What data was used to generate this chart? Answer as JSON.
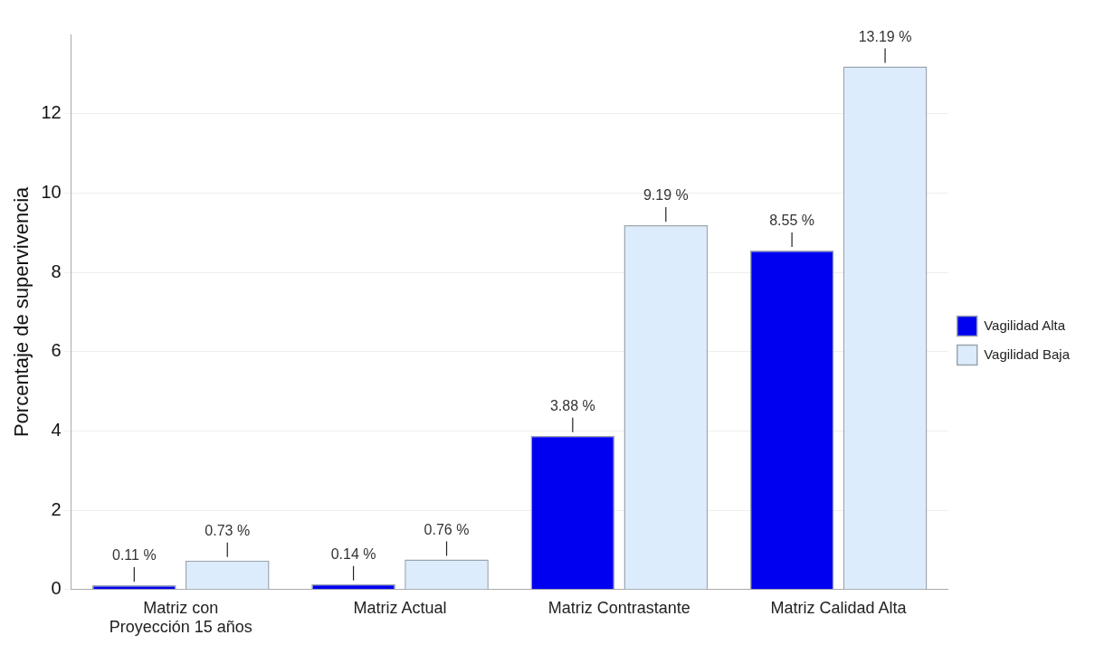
{
  "chart_data": {
    "type": "bar",
    "ylabel": "Porcentaje de supervivencia",
    "categories": [
      "Matriz con Proyección 15 años",
      "Matriz Actual",
      "Matriz Contrastante",
      "Matriz Calidad Alta"
    ],
    "series": [
      {
        "name": "Vagilidad Alta",
        "color": "#0000f0",
        "values": [
          0.11,
          0.14,
          3.88,
          8.55
        ],
        "value_labels": [
          "0.11 %",
          "0.14 %",
          "3.88 %",
          "8.55 %"
        ]
      },
      {
        "name": "Vagilidad Baja",
        "color": "#dcecfc",
        "values": [
          0.73,
          0.76,
          9.19,
          13.19
        ],
        "value_labels": [
          "0.73 %",
          "0.76 %",
          "9.19 %",
          "13.19 %"
        ]
      }
    ],
    "ylim": [
      0,
      14
    ],
    "yticks": [
      0,
      2,
      4,
      6,
      8,
      10,
      12
    ],
    "grid": "y",
    "legend": "right"
  }
}
